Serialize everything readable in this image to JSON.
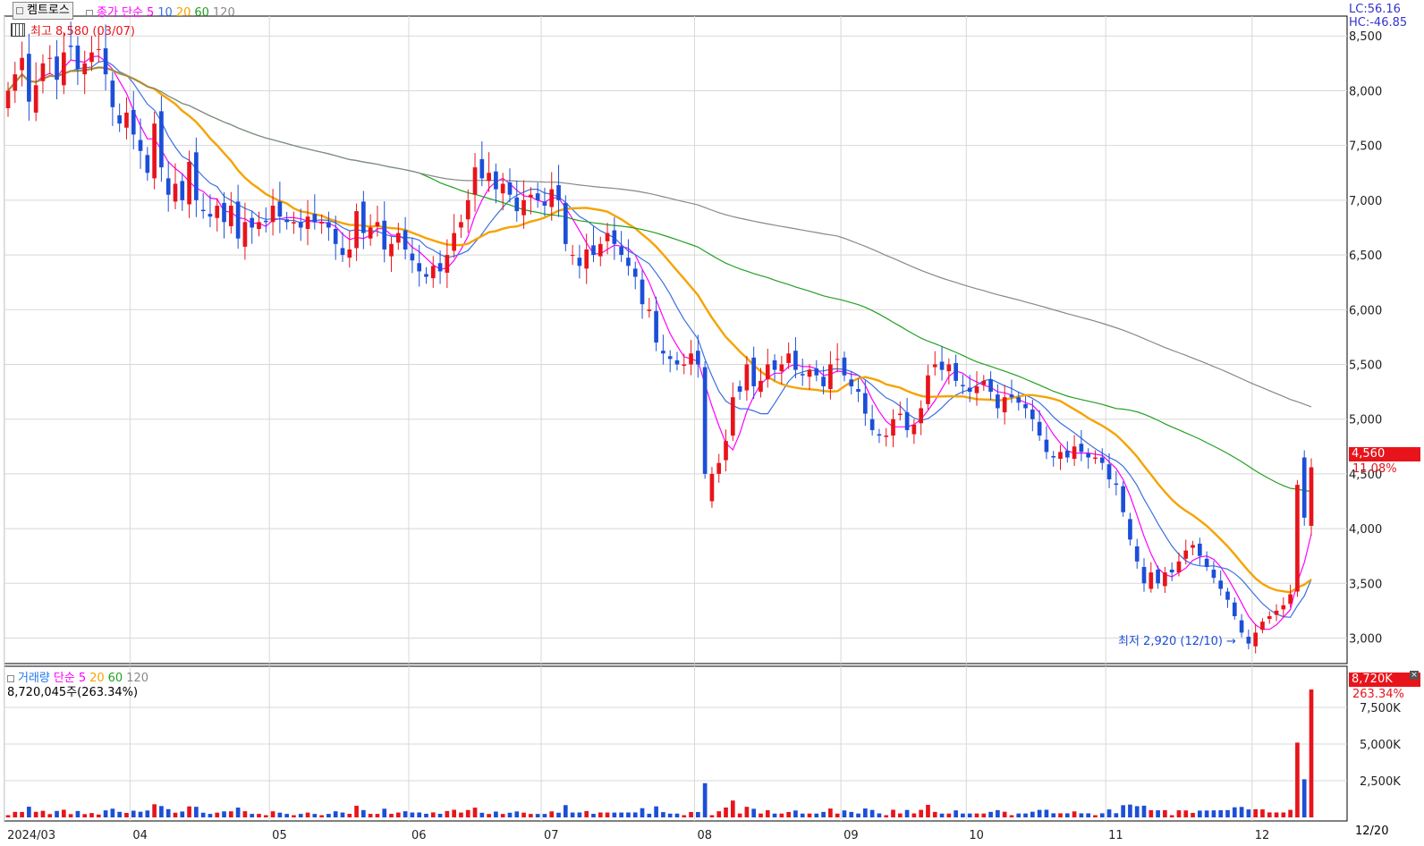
{
  "header": {
    "stock_name": "켐트로스",
    "price_label": "종가 단순",
    "ma_periods": [
      "5",
      "10",
      "20",
      "60",
      "120"
    ],
    "ma_colors": [
      "#ff00ff",
      "#3a6fe0",
      "#f5a300",
      "#22a022",
      "#888888"
    ],
    "high_note": "최고 8,580 (03/07)",
    "lc_label": "LC:56.16",
    "hc_label": "HC:-46.85"
  },
  "price_panel": {
    "current_price": "4,560",
    "change_pct": "11.08%",
    "low_note": "최저 2,920 (12/10)",
    "y_ticks": [
      "8,500",
      "8,000",
      "7,500",
      "7,000",
      "6,500",
      "6,000",
      "5,500",
      "5,000",
      "4,500",
      "4,000",
      "3,500",
      "3,000"
    ]
  },
  "volume_panel": {
    "title": "거래량",
    "ma_label": "단순",
    "ma_periods": [
      "5",
      "20",
      "60",
      "120"
    ],
    "current_volume": "8,720,045주(263.34%)",
    "tag_value": "8,720K",
    "tag_pct": "263.34%",
    "y_ticks": [
      "7,500K",
      "5,000K",
      "2,500K"
    ]
  },
  "x_axis": {
    "labels": [
      "2024/03",
      "04",
      "05",
      "06",
      "07",
      "08",
      "09",
      "10",
      "11",
      "12"
    ],
    "right_date": "12/20"
  },
  "colors": {
    "up": "#e8141b",
    "down": "#1c4fd8",
    "grid": "#d8d8d8"
  },
  "chart_data": {
    "type": "candlestick",
    "y_range": [
      2800,
      8600
    ],
    "volume_range": [
      0,
      10000
    ],
    "volume_unit": "K",
    "months": [
      {
        "label": "2024/03",
        "start_index": 0
      },
      {
        "label": "04",
        "start_index": 18
      },
      {
        "label": "05",
        "start_index": 38
      },
      {
        "label": "06",
        "start_index": 58
      },
      {
        "label": "07",
        "start_index": 77
      },
      {
        "label": "08",
        "start_index": 99
      },
      {
        "label": "09",
        "start_index": 120
      },
      {
        "label": "10",
        "start_index": 138
      },
      {
        "label": "11",
        "start_index": 158
      },
      {
        "label": "12",
        "start_index": 179
      }
    ],
    "closes": [
      8000,
      8150,
      8300,
      7900,
      8050,
      8250,
      8300,
      8100,
      8350,
      8400,
      8200,
      8250,
      8350,
      8380,
      8150,
      7850,
      7700,
      7800,
      7600,
      7450,
      7250,
      7700,
      7300,
      7050,
      7150,
      7000,
      7350,
      7000,
      6900,
      6850,
      6950,
      6800,
      6950,
      6650,
      6800,
      6750,
      6800,
      6800,
      6950,
      6850,
      6800,
      6800,
      6750,
      6850,
      6800,
      6800,
      6750,
      6600,
      6500,
      6550,
      6900,
      6700,
      6750,
      6800,
      6550,
      6600,
      6700,
      6550,
      6450,
      6350,
      6300,
      6400,
      6350,
      6500,
      6700,
      6800,
      7000,
      7300,
      7200,
      7250,
      7100,
      7150,
      7050,
      6900,
      7000,
      7050,
      7000,
      6950,
      7100,
      7000,
      6600,
      6500,
      6400,
      6550,
      6500,
      6600,
      6700,
      6600,
      6500,
      6400,
      6300,
      6050,
      6000,
      5700,
      5600,
      5550,
      5500,
      5500,
      5600,
      5500,
      4500,
      4500,
      4600,
      4800,
      5200,
      5250,
      5500,
      5300,
      5350,
      5500,
      5450,
      5500,
      5600,
      5450,
      5400,
      5450,
      5400,
      5300,
      5500,
      5550,
      5400,
      5300,
      5250,
      5050,
      4900,
      4850,
      4850,
      5000,
      5050,
      4900,
      4950,
      5100,
      5400,
      5500,
      5450,
      5500,
      5350,
      5300,
      5250,
      5300,
      5350,
      5250,
      5100,
      5200,
      5200,
      5150,
      5100,
      5000,
      4850,
      4700,
      4650,
      4700,
      4650,
      4750,
      4700,
      4650,
      4650,
      4600,
      4450,
      4400,
      4150,
      3900,
      3700,
      3500,
      3600,
      3500,
      3600,
      3600,
      3700,
      3800,
      3850,
      3750,
      3650,
      3550,
      3450,
      3350,
      3200,
      3050,
      2950,
      3050,
      3150,
      3200,
      3250,
      3300,
      3400,
      4400,
      4100,
      4560
    ]
  }
}
